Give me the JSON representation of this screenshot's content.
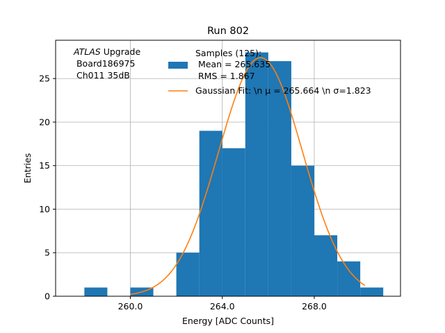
{
  "chart_data": {
    "type": "bar",
    "title": "Run 802",
    "xlabel": "Energy [ADC Counts]",
    "ylabel": "Entries",
    "xlim": [
      256.75,
      271.75
    ],
    "ylim": [
      0,
      29.4
    ],
    "xticks": [
      260,
      264,
      268
    ],
    "xtick_labels": [
      "260.0",
      "264.0",
      "268.0"
    ],
    "yticks": [
      0,
      5,
      10,
      15,
      20,
      25
    ],
    "ytick_labels": [
      "0",
      "5",
      "10",
      "15",
      "20",
      "25"
    ],
    "grid": true,
    "legend_position": "top-right",
    "annotation": {
      "line1_italic": "ATLAS",
      "line1_rest": " Upgrade",
      "line2": " Board186975",
      "line3": " Ch011 35dB"
    },
    "histogram": {
      "name": "Samples (125):\n Mean = 265.635\n RMS = 1.867",
      "legend_lines": [
        "Samples (125):",
        " Mean = 265.635",
        " RMS = 1.867"
      ],
      "color": "#1f77b4",
      "bins": [
        {
          "left": 258,
          "right": 259,
          "count": 1
        },
        {
          "left": 260,
          "right": 261,
          "count": 1
        },
        {
          "left": 262,
          "right": 263,
          "count": 5
        },
        {
          "left": 263,
          "right": 264,
          "count": 19
        },
        {
          "left": 264,
          "right": 265,
          "count": 17
        },
        {
          "left": 265,
          "right": 266,
          "count": 28
        },
        {
          "left": 266,
          "right": 267,
          "count": 27
        },
        {
          "left": 267,
          "right": 268,
          "count": 15
        },
        {
          "left": 268,
          "right": 269,
          "count": 7
        },
        {
          "left": 269,
          "right": 270,
          "count": 4
        },
        {
          "left": 270,
          "right": 271,
          "count": 1
        }
      ]
    },
    "fit": {
      "name": "Gaussian Fit: \\n μ = 265.664 \\n σ=1.823",
      "legend_text": "Gaussian Fit: \\n μ = 265.664 \\n σ=1.823",
      "color": "#ff7f0e",
      "mu": 265.664,
      "sigma": 1.823,
      "amplitude": 27.4,
      "x_range": [
        260.0,
        270.2
      ]
    }
  }
}
